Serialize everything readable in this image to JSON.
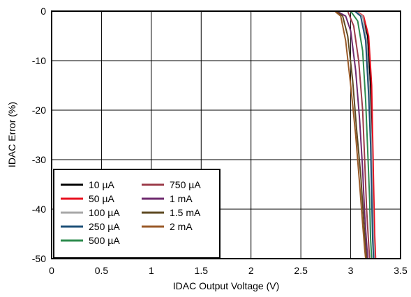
{
  "chart_data": {
    "type": "line",
    "title": "",
    "xlabel": "IDAC Output Voltage (V)",
    "ylabel": "IDAC Error (%)",
    "xlim": [
      0,
      3.5
    ],
    "ylim": [
      -50,
      0
    ],
    "xticks": [
      "0",
      "0.5",
      "1",
      "1.5",
      "2",
      "2.5",
      "3",
      "3.5"
    ],
    "yticks": [
      "0",
      "-10",
      "-20",
      "-30",
      "-40",
      "-50"
    ],
    "grid": true,
    "legend_position": "bottom-left",
    "series": [
      {
        "name": "10 µA",
        "color": "#000000",
        "x": [
          2.9,
          3.05,
          3.12,
          3.17,
          3.2,
          3.21,
          3.22,
          3.23,
          3.24
        ],
        "y": [
          0,
          0,
          -1,
          -5,
          -15,
          -25,
          -35,
          -45,
          -50
        ]
      },
      {
        "name": "50 µA",
        "color": "#e8101f",
        "x": [
          2.9,
          3.06,
          3.13,
          3.18,
          3.21,
          3.22,
          3.23,
          3.24,
          3.25
        ],
        "y": [
          0,
          0,
          -1,
          -5,
          -15,
          -25,
          -35,
          -45,
          -50
        ]
      },
      {
        "name": "100 µA",
        "color": "#a8a8a8",
        "x": [
          2.9,
          3.05,
          3.12,
          3.16,
          3.19,
          3.21,
          3.22,
          3.23,
          3.24
        ],
        "y": [
          0,
          0,
          -1,
          -6,
          -17,
          -27,
          -37,
          -46,
          -50
        ]
      },
      {
        "name": "250 µA",
        "color": "#1e5078",
        "x": [
          2.9,
          3.04,
          3.1,
          3.15,
          3.18,
          3.2,
          3.21,
          3.22,
          3.23
        ],
        "y": [
          0,
          0,
          -1,
          -6,
          -17,
          -27,
          -37,
          -46,
          -50
        ]
      },
      {
        "name": "500 µA",
        "color": "#2e8b4e",
        "x": [
          2.88,
          3.0,
          3.07,
          3.12,
          3.15,
          3.17,
          3.19,
          3.2,
          3.21
        ],
        "y": [
          0,
          0,
          -2,
          -8,
          -18,
          -28,
          -38,
          -46,
          -50
        ]
      },
      {
        "name": "750 µA",
        "color": "#9c3c4a",
        "x": [
          2.87,
          2.97,
          3.03,
          3.08,
          3.12,
          3.14,
          3.16,
          3.18,
          3.19
        ],
        "y": [
          0,
          0,
          -3,
          -10,
          -20,
          -30,
          -40,
          -47,
          -50
        ]
      },
      {
        "name": "1 mA",
        "color": "#6e2a6e",
        "x": [
          2.86,
          2.95,
          3.0,
          3.05,
          3.09,
          3.12,
          3.14,
          3.16,
          3.17
        ],
        "y": [
          0,
          -1,
          -4,
          -12,
          -22,
          -32,
          -41,
          -47,
          -50
        ]
      },
      {
        "name": "1.5 mA",
        "color": "#5e4a22",
        "x": [
          2.85,
          2.92,
          2.97,
          3.02,
          3.06,
          3.1,
          3.13,
          3.15,
          3.16
        ],
        "y": [
          0,
          -1,
          -5,
          -14,
          -24,
          -33,
          -42,
          -48,
          -50
        ]
      },
      {
        "name": "2 mA",
        "color": "#9a5a28",
        "x": [
          2.84,
          2.9,
          2.95,
          3.0,
          3.05,
          3.09,
          3.12,
          3.14,
          3.15
        ],
        "y": [
          0,
          -1,
          -6,
          -15,
          -25,
          -35,
          -43,
          -48,
          -50
        ]
      }
    ]
  }
}
